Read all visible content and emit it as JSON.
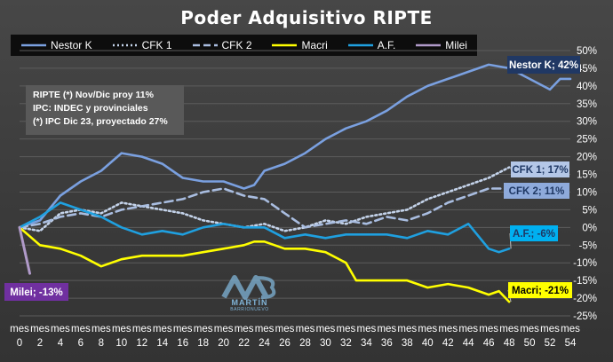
{
  "chart_data": {
    "type": "line",
    "title": "Poder Adquisitivo RIPTE",
    "x_categories": [
      "mes 0",
      "mes 2",
      "mes 4",
      "mes 6",
      "mes 8",
      "mes 10",
      "mes 12",
      "mes 14",
      "mes 16",
      "mes 18",
      "mes 20",
      "mes 22",
      "mes 24",
      "mes 26",
      "mes 28",
      "mes 30",
      "mes 32",
      "mes 34",
      "mes 36",
      "mes 38",
      "mes 40",
      "mes 42",
      "mes 44",
      "mes 46",
      "mes 48",
      "mes 50",
      "mes 52",
      "mes 54"
    ],
    "y_ticks": [
      "50%",
      "45%",
      "40%",
      "35%",
      "30%",
      "25%",
      "20%",
      "15%",
      "10%",
      "5%",
      "0%",
      "-5%",
      "-10%",
      "-15%",
      "-20%",
      "-25%"
    ],
    "ylim": [
      -25,
      50
    ],
    "xlim": [
      0,
      54
    ],
    "grid": true,
    "legend_position": "top",
    "series": [
      {
        "name": "Nestor K",
        "color": "#7aa0e0",
        "dash": "solid",
        "points": [
          [
            0,
            0
          ],
          [
            2,
            2
          ],
          [
            4,
            9
          ],
          [
            6,
            13
          ],
          [
            8,
            16
          ],
          [
            10,
            21
          ],
          [
            12,
            20
          ],
          [
            14,
            18
          ],
          [
            16,
            14
          ],
          [
            18,
            13
          ],
          [
            20,
            13
          ],
          [
            22,
            11
          ],
          [
            23,
            12
          ],
          [
            24,
            16
          ],
          [
            26,
            18
          ],
          [
            28,
            21
          ],
          [
            30,
            25
          ],
          [
            32,
            28
          ],
          [
            34,
            30
          ],
          [
            36,
            33
          ],
          [
            38,
            37
          ],
          [
            40,
            40
          ],
          [
            42,
            42
          ],
          [
            44,
            44
          ],
          [
            46,
            46
          ],
          [
            48,
            45
          ],
          [
            50,
            42
          ],
          [
            52,
            39
          ],
          [
            53,
            42
          ],
          [
            54,
            42
          ]
        ],
        "label": "Nestor K; 42%"
      },
      {
        "name": "CFK 1",
        "color": "#c4d3ea",
        "dash": "dotted",
        "points": [
          [
            0,
            0
          ],
          [
            2,
            -1
          ],
          [
            4,
            4
          ],
          [
            6,
            5
          ],
          [
            8,
            4
          ],
          [
            10,
            7
          ],
          [
            12,
            6
          ],
          [
            14,
            5
          ],
          [
            16,
            4
          ],
          [
            18,
            2
          ],
          [
            20,
            1
          ],
          [
            22,
            0
          ],
          [
            24,
            1
          ],
          [
            26,
            -1
          ],
          [
            28,
            0
          ],
          [
            30,
            2
          ],
          [
            32,
            1
          ],
          [
            34,
            3
          ],
          [
            36,
            4
          ],
          [
            38,
            5
          ],
          [
            40,
            8
          ],
          [
            42,
            10
          ],
          [
            44,
            12
          ],
          [
            46,
            14
          ],
          [
            48,
            17
          ]
        ],
        "label": "CFK 1; 17%"
      },
      {
        "name": "CFK 2",
        "color": "#a9bde0",
        "dash": "dashed",
        "points": [
          [
            0,
            0
          ],
          [
            2,
            1
          ],
          [
            4,
            3
          ],
          [
            6,
            4
          ],
          [
            8,
            3
          ],
          [
            10,
            5
          ],
          [
            12,
            6
          ],
          [
            14,
            7
          ],
          [
            16,
            8
          ],
          [
            18,
            10
          ],
          [
            20,
            11
          ],
          [
            22,
            9
          ],
          [
            24,
            8
          ],
          [
            26,
            4
          ],
          [
            28,
            0
          ],
          [
            30,
            1
          ],
          [
            32,
            2
          ],
          [
            34,
            1
          ],
          [
            36,
            3
          ],
          [
            38,
            2
          ],
          [
            40,
            4
          ],
          [
            42,
            7
          ],
          [
            44,
            9
          ],
          [
            46,
            11
          ],
          [
            48,
            11
          ]
        ],
        "label": "CFK 2; 11%"
      },
      {
        "name": "Macri",
        "color": "#ffff00",
        "dash": "solid",
        "points": [
          [
            0,
            0
          ],
          [
            2,
            -5
          ],
          [
            4,
            -6
          ],
          [
            6,
            -8
          ],
          [
            8,
            -11
          ],
          [
            10,
            -9
          ],
          [
            12,
            -8
          ],
          [
            14,
            -8
          ],
          [
            16,
            -8
          ],
          [
            18,
            -7
          ],
          [
            20,
            -6
          ],
          [
            22,
            -5
          ],
          [
            23,
            -4
          ],
          [
            24,
            -4
          ],
          [
            26,
            -6
          ],
          [
            28,
            -6
          ],
          [
            30,
            -7
          ],
          [
            32,
            -10
          ],
          [
            33,
            -15
          ],
          [
            34,
            -15
          ],
          [
            36,
            -15
          ],
          [
            38,
            -15
          ],
          [
            40,
            -17
          ],
          [
            42,
            -16
          ],
          [
            44,
            -17
          ],
          [
            46,
            -19
          ],
          [
            47,
            -18
          ],
          [
            48,
            -21
          ]
        ],
        "label": "Macri; -21%"
      },
      {
        "name": "A.F.",
        "color": "#1fa0e0",
        "dash": "solid",
        "points": [
          [
            0,
            0
          ],
          [
            2,
            3
          ],
          [
            4,
            7
          ],
          [
            6,
            5
          ],
          [
            8,
            3
          ],
          [
            10,
            0
          ],
          [
            12,
            -2
          ],
          [
            14,
            -1
          ],
          [
            16,
            -2
          ],
          [
            18,
            0
          ],
          [
            20,
            1
          ],
          [
            22,
            0
          ],
          [
            24,
            0
          ],
          [
            26,
            -3
          ],
          [
            28,
            -2
          ],
          [
            30,
            -3
          ],
          [
            32,
            -2
          ],
          [
            34,
            -2
          ],
          [
            36,
            -2
          ],
          [
            38,
            -3
          ],
          [
            40,
            -1
          ],
          [
            42,
            -2
          ],
          [
            44,
            1
          ],
          [
            46,
            -6
          ],
          [
            47,
            -7
          ],
          [
            48,
            -6
          ]
        ],
        "label": "A.F.; -6%"
      },
      {
        "name": "Milei",
        "color": "#b09ac9",
        "dash": "solid",
        "points": [
          [
            0,
            0
          ],
          [
            1,
            -13
          ]
        ],
        "label": "Milei; -13%"
      }
    ]
  },
  "legend": [
    {
      "name": "Nestor K",
      "color": "#7aa0e0",
      "dash": "solid"
    },
    {
      "name": "CFK 1",
      "color": "#c4d3ea",
      "dash": "dotted"
    },
    {
      "name": "CFK 2",
      "color": "#a9bde0",
      "dash": "dashed"
    },
    {
      "name": "Macri",
      "color": "#ffff00",
      "dash": "solid"
    },
    {
      "name": "A.F.",
      "color": "#1fa0e0",
      "dash": "solid"
    },
    {
      "name": "Milei",
      "color": "#b09ac9",
      "dash": "solid"
    }
  ],
  "note_lines": [
    "RIPTE (*) Nov/Dic proy 11%",
    "IPC: INDEC y provinciales",
    "(*) IPC Dic 23, proyectado 27%"
  ],
  "callouts": [
    {
      "series": "Nestor K",
      "text": "Nestor K; 42%",
      "bg": "#203864",
      "fg": "#ffffff"
    },
    {
      "series": "CFK 1",
      "text": "CFK 1; 17%",
      "bg": "#b4c7e7",
      "fg": "#1f3864"
    },
    {
      "series": "CFK 2",
      "text": "CFK 2; 11%",
      "bg": "#8eaadb",
      "fg": "#1f3864"
    },
    {
      "series": "A.F.",
      "text": "A.F.; -6%",
      "bg": "#00b0f0",
      "fg": "#1f3864"
    },
    {
      "series": "Macri",
      "text": "Macri; -21%",
      "bg": "#ffff00",
      "fg": "#000000"
    },
    {
      "series": "Milei",
      "text": "Milei; -13%",
      "bg": "#7030a0",
      "fg": "#ffffff"
    }
  ],
  "watermark": {
    "logo_text": "MARTÍN",
    "sub_text": "BARRIONUEVO",
    "color": "#7fb3d6"
  }
}
